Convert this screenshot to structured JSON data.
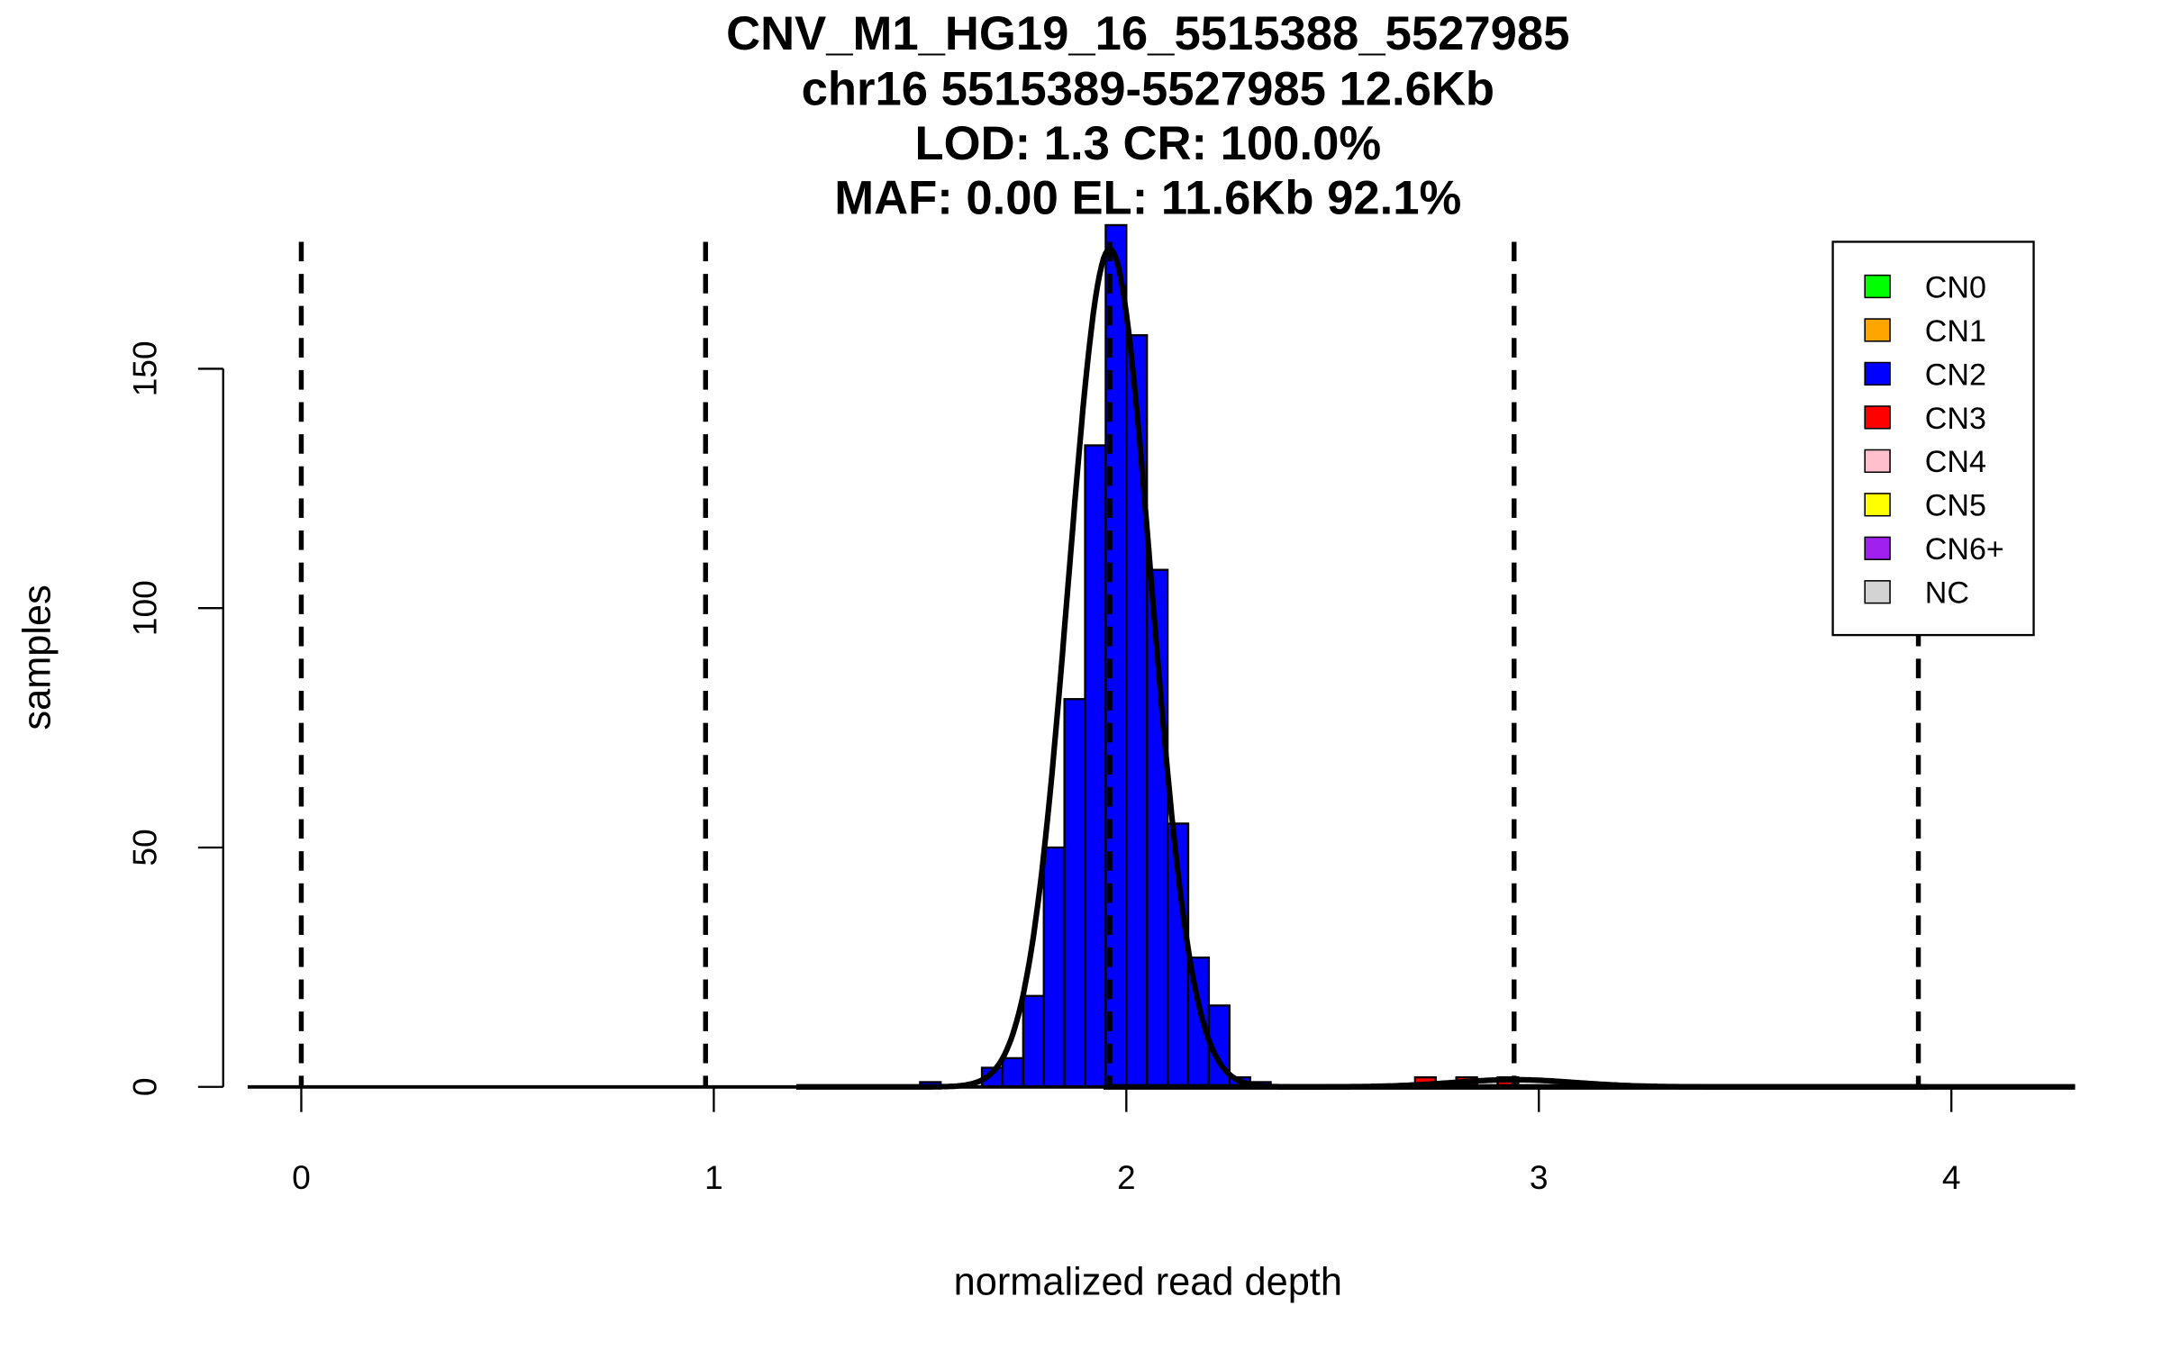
{
  "chart_data": {
    "type": "bar",
    "title_lines": [
      "CNV_M1_HG19_16_5515388_5527985",
      "chr16 5515389-5527985 12.6Kb",
      "LOD: 1.3 CR: 100.0%",
      "MAF: 0.00 EL: 11.6Kb 92.1%"
    ],
    "xlabel": "normalized read depth",
    "ylabel": "samples",
    "xlim": [
      -0.13,
      4.3
    ],
    "ylim": [
      0,
      180
    ],
    "x_ticks": [
      "0",
      "1",
      "2",
      "3",
      "4"
    ],
    "y_ticks": [
      "0",
      "50",
      "100",
      "150"
    ],
    "bin_width": 0.05,
    "bins": [
      {
        "x": 1.5,
        "count": 1,
        "cn": "CN2"
      },
      {
        "x": 1.65,
        "count": 4,
        "cn": "CN2"
      },
      {
        "x": 1.7,
        "count": 6,
        "cn": "CN2"
      },
      {
        "x": 1.75,
        "count": 19,
        "cn": "CN2"
      },
      {
        "x": 1.8,
        "count": 50,
        "cn": "CN2"
      },
      {
        "x": 1.85,
        "count": 81,
        "cn": "CN2"
      },
      {
        "x": 1.9,
        "count": 134,
        "cn": "CN2"
      },
      {
        "x": 1.95,
        "count": 180,
        "cn": "CN2"
      },
      {
        "x": 2.0,
        "count": 157,
        "cn": "CN2"
      },
      {
        "x": 2.05,
        "count": 108,
        "cn": "CN2"
      },
      {
        "x": 2.1,
        "count": 55,
        "cn": "CN2"
      },
      {
        "x": 2.15,
        "count": 27,
        "cn": "CN2"
      },
      {
        "x": 2.2,
        "count": 17,
        "cn": "CN2"
      },
      {
        "x": 2.25,
        "count": 2,
        "cn": "CN2"
      },
      {
        "x": 2.3,
        "count": 1,
        "cn": "CN2"
      },
      {
        "x": 2.7,
        "count": 2,
        "cn": "CN3"
      },
      {
        "x": 2.8,
        "count": 2,
        "cn": "CN3"
      },
      {
        "x": 2.9,
        "count": 2,
        "cn": "CN3"
      }
    ],
    "cn_thresholds": [
      0,
      0.98,
      1.96,
      2.94,
      3.92
    ],
    "fit_curves": [
      {
        "mean": 1.96,
        "sd": 0.1,
        "peak": 175
      },
      {
        "mean": 2.94,
        "sd": 0.15,
        "peak": 1.5
      }
    ],
    "legend": {
      "placement": "top-right",
      "entries": [
        {
          "label": "CN0",
          "color": "#00ff00"
        },
        {
          "label": "CN1",
          "color": "#ffa500"
        },
        {
          "label": "CN2",
          "color": "#0000ff"
        },
        {
          "label": "CN3",
          "color": "#ff0000"
        },
        {
          "label": "CN4",
          "color": "#ffc0cb"
        },
        {
          "label": "CN5",
          "color": "#ffff00"
        },
        {
          "label": "CN6+",
          "color": "#a020f0"
        },
        {
          "label": "NC",
          "color": "#d3d3d3"
        }
      ]
    }
  }
}
